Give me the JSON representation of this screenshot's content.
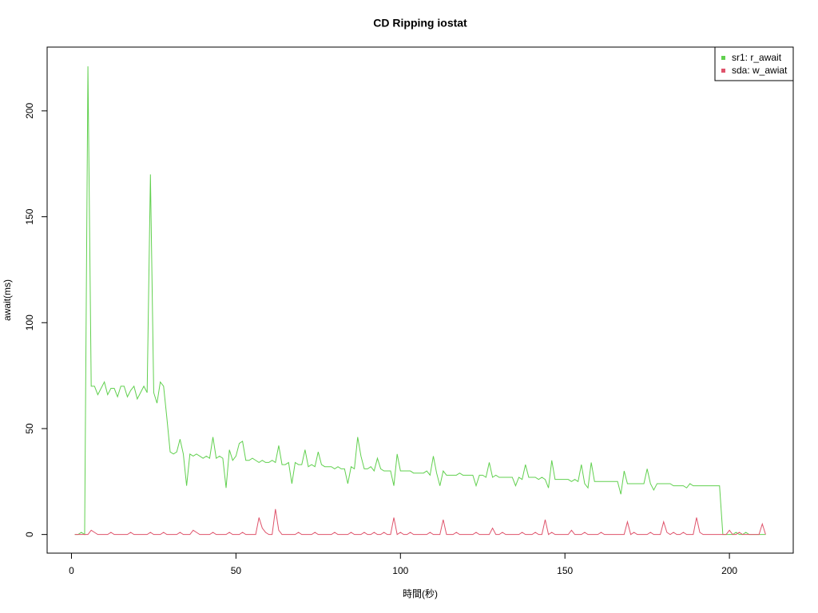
{
  "chart_data": {
    "type": "line",
    "title": "CD Ripping iostat",
    "x_label": "時間(秒)",
    "y_label": "await(ms)",
    "x": [
      1,
      2,
      3,
      4,
      5,
      6,
      7,
      8,
      9,
      10,
      11,
      12,
      13,
      14,
      15,
      16,
      17,
      18,
      19,
      20,
      21,
      22,
      23,
      24,
      25,
      26,
      27,
      28,
      29,
      30,
      31,
      32,
      33,
      34,
      35,
      36,
      37,
      38,
      39,
      40,
      41,
      42,
      43,
      44,
      45,
      46,
      47,
      48,
      49,
      50,
      51,
      52,
      53,
      54,
      55,
      56,
      57,
      58,
      59,
      60,
      61,
      62,
      63,
      64,
      65,
      66,
      67,
      68,
      69,
      70,
      71,
      72,
      73,
      74,
      75,
      76,
      77,
      78,
      79,
      80,
      81,
      82,
      83,
      84,
      85,
      86,
      87,
      88,
      89,
      90,
      91,
      92,
      93,
      94,
      95,
      96,
      97,
      98,
      99,
      100,
      101,
      102,
      103,
      104,
      105,
      106,
      107,
      108,
      109,
      110,
      111,
      112,
      113,
      114,
      115,
      116,
      117,
      118,
      119,
      120,
      121,
      122,
      123,
      124,
      125,
      126,
      127,
      128,
      129,
      130,
      131,
      132,
      133,
      134,
      135,
      136,
      137,
      138,
      139,
      140,
      141,
      142,
      143,
      144,
      145,
      146,
      147,
      148,
      149,
      150,
      151,
      152,
      153,
      154,
      155,
      156,
      157,
      158,
      159,
      160,
      161,
      162,
      163,
      164,
      165,
      166,
      167,
      168,
      169,
      170,
      171,
      172,
      173,
      174,
      175,
      176,
      177,
      178,
      179,
      180,
      181,
      182,
      183,
      184,
      185,
      186,
      187,
      188,
      189,
      190,
      191,
      192,
      193,
      194,
      195,
      196,
      197,
      198,
      199,
      200,
      201,
      202,
      203,
      204,
      205,
      206,
      207,
      208,
      209,
      210,
      211
    ],
    "series": [
      {
        "name": "sr1: r_await",
        "color": "#61d04f",
        "values": [
          0,
          0,
          1,
          0,
          221,
          70,
          70,
          66,
          69,
          72,
          66,
          69,
          69,
          65,
          70,
          70,
          65,
          68,
          70,
          64,
          67,
          70,
          67,
          170,
          67,
          62,
          72,
          70,
          55,
          39,
          38,
          39,
          45,
          38,
          23,
          38,
          37,
          38,
          37,
          36,
          37,
          36,
          46,
          36,
          37,
          36,
          22,
          40,
          35,
          37,
          43,
          44,
          35,
          35,
          36,
          35,
          34,
          35,
          34,
          34,
          35,
          34,
          42,
          33,
          33,
          34,
          24,
          34,
          33,
          33,
          40,
          32,
          33,
          32,
          39,
          33,
          32,
          32,
          32,
          31,
          32,
          31,
          31,
          24,
          32,
          31,
          46,
          37,
          31,
          31,
          32,
          30,
          36,
          31,
          30,
          30,
          30,
          23,
          38,
          30,
          30,
          30,
          30,
          29,
          29,
          29,
          29,
          30,
          28,
          37,
          29,
          23,
          30,
          28,
          28,
          28,
          28,
          29,
          28,
          28,
          28,
          28,
          23,
          28,
          28,
          27,
          34,
          27,
          28,
          27,
          27,
          27,
          27,
          27,
          23,
          27,
          26,
          33,
          27,
          27,
          27,
          26,
          27,
          26,
          22,
          35,
          26,
          26,
          26,
          26,
          26,
          25,
          26,
          25,
          33,
          24,
          22,
          34,
          25,
          25,
          25,
          25,
          25,
          25,
          25,
          25,
          19,
          30,
          24,
          24,
          24,
          24,
          24,
          24,
          31,
          24,
          21,
          24,
          24,
          24,
          24,
          24,
          23,
          23,
          23,
          23,
          22,
          24,
          23,
          23,
          23,
          23,
          23,
          23,
          23,
          23,
          23,
          0,
          0,
          0,
          0,
          1,
          0,
          0,
          1,
          0,
          0,
          0,
          0,
          0,
          0
        ]
      },
      {
        "name": "sda: w_awiat",
        "color": "#df536b",
        "values": [
          0,
          0,
          0,
          0,
          0,
          2,
          1,
          0,
          0,
          0,
          0,
          1,
          0,
          0,
          0,
          0,
          0,
          1,
          0,
          0,
          0,
          0,
          0,
          1,
          0,
          0,
          0,
          1,
          0,
          0,
          0,
          0,
          1,
          0,
          0,
          0,
          2,
          1,
          0,
          0,
          0,
          0,
          1,
          0,
          0,
          0,
          0,
          1,
          0,
          0,
          0,
          1,
          0,
          0,
          0,
          0,
          8,
          3,
          1,
          0,
          0,
          12,
          2,
          0,
          0,
          0,
          0,
          0,
          1,
          0,
          0,
          0,
          0,
          1,
          0,
          0,
          0,
          0,
          0,
          1,
          0,
          0,
          0,
          0,
          1,
          0,
          0,
          0,
          1,
          0,
          0,
          1,
          0,
          0,
          1,
          0,
          0,
          8,
          0,
          1,
          0,
          0,
          1,
          0,
          0,
          0,
          0,
          0,
          1,
          0,
          0,
          0,
          7,
          0,
          0,
          0,
          1,
          0,
          0,
          0,
          0,
          0,
          1,
          0,
          0,
          0,
          0,
          3,
          0,
          0,
          1,
          0,
          0,
          0,
          0,
          0,
          1,
          0,
          0,
          0,
          1,
          0,
          0,
          7,
          0,
          1,
          0,
          0,
          0,
          0,
          0,
          2,
          0,
          0,
          0,
          1,
          0,
          0,
          0,
          0,
          1,
          0,
          0,
          0,
          0,
          0,
          0,
          0,
          6,
          0,
          1,
          0,
          0,
          0,
          0,
          1,
          0,
          0,
          0,
          6,
          1,
          0,
          1,
          0,
          0,
          1,
          0,
          0,
          0,
          8,
          1,
          0,
          0,
          0,
          0,
          0,
          0,
          0,
          0,
          2,
          0,
          0,
          1,
          0,
          0,
          0,
          0,
          0,
          0,
          5,
          0
        ]
      }
    ],
    "xlim": [
      -7.4,
      219.4
    ],
    "ylim": [
      -8.8,
      230.1
    ],
    "xticks": [
      0,
      50,
      100,
      150,
      200
    ],
    "yticks": [
      0,
      50,
      100,
      150,
      200
    ],
    "grid": false,
    "legend_position": "topright"
  }
}
